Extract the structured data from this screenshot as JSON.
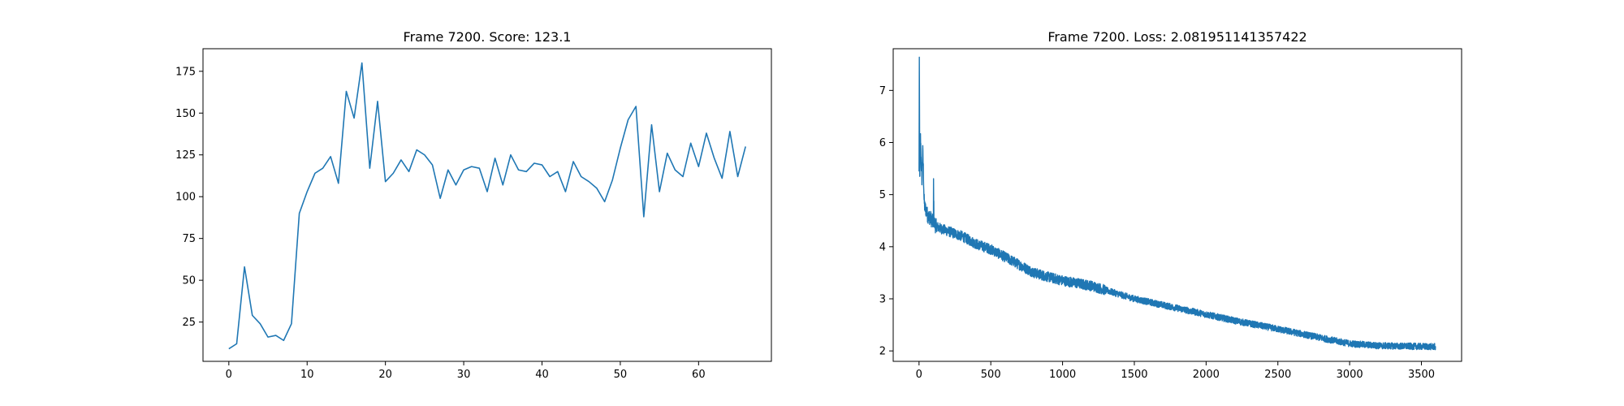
{
  "chart_data": [
    {
      "type": "line",
      "title": "Frame 7200. Score: 123.1",
      "xlabel": "",
      "ylabel": "",
      "xlim": [
        -3.3,
        69.3
      ],
      "ylim": [
        1.5,
        188.5
      ],
      "grid": false,
      "x_ticks": [
        0,
        10,
        20,
        30,
        40,
        50,
        60
      ],
      "y_ticks": [
        25,
        50,
        75,
        100,
        125,
        150,
        175
      ],
      "color": "#1f77b4",
      "series": [
        {
          "x": [
            0,
            1,
            2,
            3,
            4,
            5,
            6,
            7,
            8,
            9,
            10,
            11,
            12,
            13,
            14,
            15,
            16,
            17,
            18,
            19,
            20,
            21,
            22,
            23,
            24,
            25,
            26,
            27,
            28,
            29,
            30,
            31,
            32,
            33,
            34,
            35,
            36,
            37,
            38,
            39,
            40,
            41,
            42,
            43,
            44,
            45,
            46,
            47,
            48,
            49,
            50,
            51,
            52,
            53,
            54,
            55,
            56,
            57,
            58,
            59,
            60,
            61,
            62,
            63,
            64,
            65,
            66
          ],
          "y": [
            9,
            12,
            58,
            29,
            24,
            16,
            17,
            14,
            24,
            90,
            103,
            114,
            117,
            124,
            108,
            163,
            147,
            180,
            117,
            157,
            109,
            114,
            122,
            115,
            128,
            125,
            119,
            99,
            116,
            107,
            116,
            118,
            117,
            103,
            123,
            107,
            125,
            116,
            115,
            120,
            119,
            112,
            115,
            103,
            121,
            112,
            109,
            105,
            97,
            110,
            129,
            146,
            154,
            88,
            143,
            103,
            126,
            116,
            112,
            132,
            118,
            138,
            123,
            111,
            139,
            112,
            130
          ]
        }
      ]
    },
    {
      "type": "line",
      "title": "Frame 7200. Loss: 2.081951141357422",
      "xlabel": "",
      "ylabel": "",
      "xlim": [
        -180,
        3780
      ],
      "ylim": [
        1.8,
        7.8
      ],
      "grid": false,
      "x_ticks": [
        0,
        500,
        1000,
        1500,
        2000,
        2500,
        3000,
        3500
      ],
      "y_ticks": [
        2,
        3,
        4,
        5,
        6,
        7
      ],
      "color": "#1f77b4",
      "n_points": 3600,
      "trend_anchors": {
        "x": [
          0,
          2,
          5,
          10,
          15,
          20,
          25,
          30,
          35,
          40,
          50,
          60,
          80,
          100,
          101,
          104,
          108,
          115,
          150,
          200,
          300,
          400,
          500,
          600,
          700,
          800,
          900,
          1000,
          1200,
          1500,
          1800,
          2000,
          2200,
          2500,
          2800,
          3000,
          3200,
          3400,
          3600
        ],
        "y": [
          5.4,
          7.6,
          5.3,
          6.1,
          5.6,
          5.3,
          5.9,
          5.5,
          4.9,
          4.75,
          4.7,
          4.6,
          4.55,
          4.45,
          5.25,
          4.5,
          4.45,
          4.4,
          4.35,
          4.3,
          4.2,
          4.05,
          3.95,
          3.8,
          3.65,
          3.5,
          3.42,
          3.35,
          3.25,
          3.0,
          2.82,
          2.7,
          2.58,
          2.42,
          2.25,
          2.14,
          2.1,
          2.09,
          2.08
        ]
      },
      "noise_amplitude": 0.09
    }
  ]
}
